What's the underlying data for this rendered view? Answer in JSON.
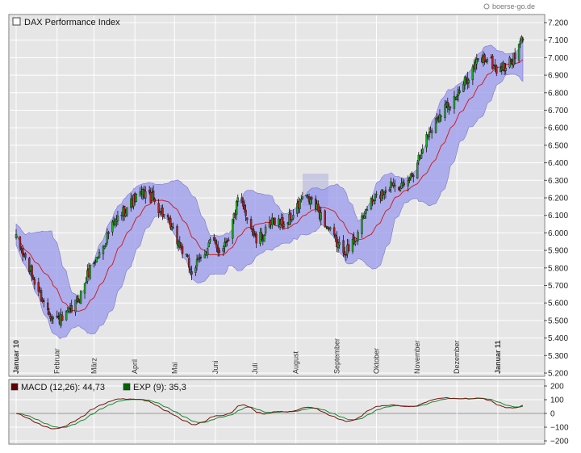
{
  "watermark": "boerse-go.de",
  "chart_data": [
    {
      "type": "candlestick",
      "title": "DAX Performance Index",
      "ylim": [
        5200,
        7200
      ],
      "yticks": [
        "7.200",
        "7.100",
        "7.000",
        "6.900",
        "6.800",
        "6.700",
        "6.600",
        "6.500",
        "6.400",
        "6.300",
        "6.200",
        "6.100",
        "6.000",
        "5.900",
        "5.800",
        "5.700",
        "5.600",
        "5.500",
        "5.400",
        "5.300",
        "5.200"
      ],
      "x_range": [
        "2010-01-01",
        "2011-01-20"
      ],
      "month_labels": [
        {
          "label": "Januar 10",
          "date": "2010-01-01",
          "bold": true
        },
        {
          "label": "Februar",
          "date": "2010-02-01"
        },
        {
          "label": "März",
          "date": "2010-03-01"
        },
        {
          "label": "April",
          "date": "2010-04-01"
        },
        {
          "label": "Mai",
          "date": "2010-05-01"
        },
        {
          "label": "Juni",
          "date": "2010-06-01"
        },
        {
          "label": "Juli",
          "date": "2010-07-01"
        },
        {
          "label": "August",
          "date": "2010-08-01"
        },
        {
          "label": "September",
          "date": "2010-09-01"
        },
        {
          "label": "Oktober",
          "date": "2010-10-01"
        },
        {
          "label": "November",
          "date": "2010-11-01"
        },
        {
          "label": "Dezember",
          "date": "2010-12-01"
        },
        {
          "label": "Januar 11",
          "date": "2011-01-01",
          "bold": true
        }
      ],
      "close_path": {
        "dates": [
          "2010-01-01",
          "2010-01-08",
          "2010-01-15",
          "2010-01-22",
          "2010-01-29",
          "2010-02-05",
          "2010-02-12",
          "2010-02-19",
          "2010-02-26",
          "2010-03-05",
          "2010-03-12",
          "2010-03-19",
          "2010-03-26",
          "2010-04-02",
          "2010-04-09",
          "2010-04-16",
          "2010-04-23",
          "2010-04-30",
          "2010-05-07",
          "2010-05-14",
          "2010-05-21",
          "2010-05-28",
          "2010-06-04",
          "2010-06-11",
          "2010-06-18",
          "2010-06-25",
          "2010-07-02",
          "2010-07-09",
          "2010-07-16",
          "2010-07-23",
          "2010-07-30",
          "2010-08-06",
          "2010-08-13",
          "2010-08-20",
          "2010-08-27",
          "2010-09-03",
          "2010-09-10",
          "2010-09-17",
          "2010-09-24",
          "2010-10-01",
          "2010-10-08",
          "2010-10-15",
          "2010-10-22",
          "2010-10-29",
          "2010-11-05",
          "2010-11-12",
          "2010-11-19",
          "2010-11-26",
          "2010-12-03",
          "2010-12-10",
          "2010-12-17",
          "2010-12-24",
          "2010-12-31",
          "2011-01-07",
          "2011-01-14",
          "2011-01-20"
        ],
        "values": [
          5960,
          5850,
          5720,
          5600,
          5520,
          5500,
          5560,
          5650,
          5800,
          5880,
          6000,
          6080,
          6150,
          6200,
          6230,
          6180,
          6100,
          6000,
          5900,
          5780,
          5850,
          5950,
          5900,
          5980,
          6180,
          6100,
          5950,
          6000,
          6080,
          6050,
          6100,
          6200,
          6180,
          6100,
          6000,
          5920,
          5900,
          6000,
          6150,
          6200,
          6250,
          6300,
          6250,
          6350,
          6500,
          6600,
          6700,
          6750,
          6800,
          6900,
          6980,
          7000,
          6930,
          6950,
          7000,
          7120
        ]
      },
      "bollinger": {
        "period": 20,
        "band": "±2σ",
        "color": "#9999ee"
      },
      "moving_average": {
        "color": "#cc2222"
      },
      "candle_colors": {
        "up": "#22aa22",
        "down": "#aa2222"
      }
    },
    {
      "type": "line",
      "indicator": "MACD",
      "series": [
        {
          "name": "MACD (12,26): 44,73",
          "color": "#7a1010",
          "swatch": "#660000"
        },
        {
          "name": "EXP (9): 35,3",
          "color": "#138a2e",
          "swatch": "#006600"
        }
      ],
      "ylim": [
        -200,
        200
      ],
      "yticks": [
        "200",
        "100",
        "0",
        "−100",
        "−200"
      ]
    }
  ]
}
